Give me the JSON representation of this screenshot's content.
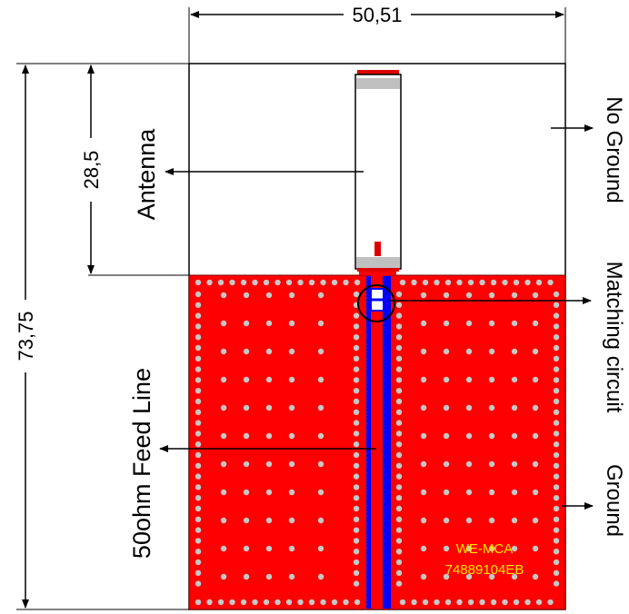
{
  "dimensions": {
    "width": "50,51",
    "height": "73,75",
    "antenna_clearance": "28,5"
  },
  "labels": {
    "antenna": "Antenna",
    "feed_line": "50ohm Feed Line",
    "no_ground": "No Ground",
    "matching_circuit": "Matching circuit",
    "ground": "Ground"
  },
  "part_number": {
    "line1": "WE-MCA",
    "line2": "74889104EB"
  },
  "colors": {
    "ground_plane": "#ff0000",
    "feed_line": "#0000ff",
    "via": "#c8c8c8",
    "part_text": "#ffe600"
  }
}
